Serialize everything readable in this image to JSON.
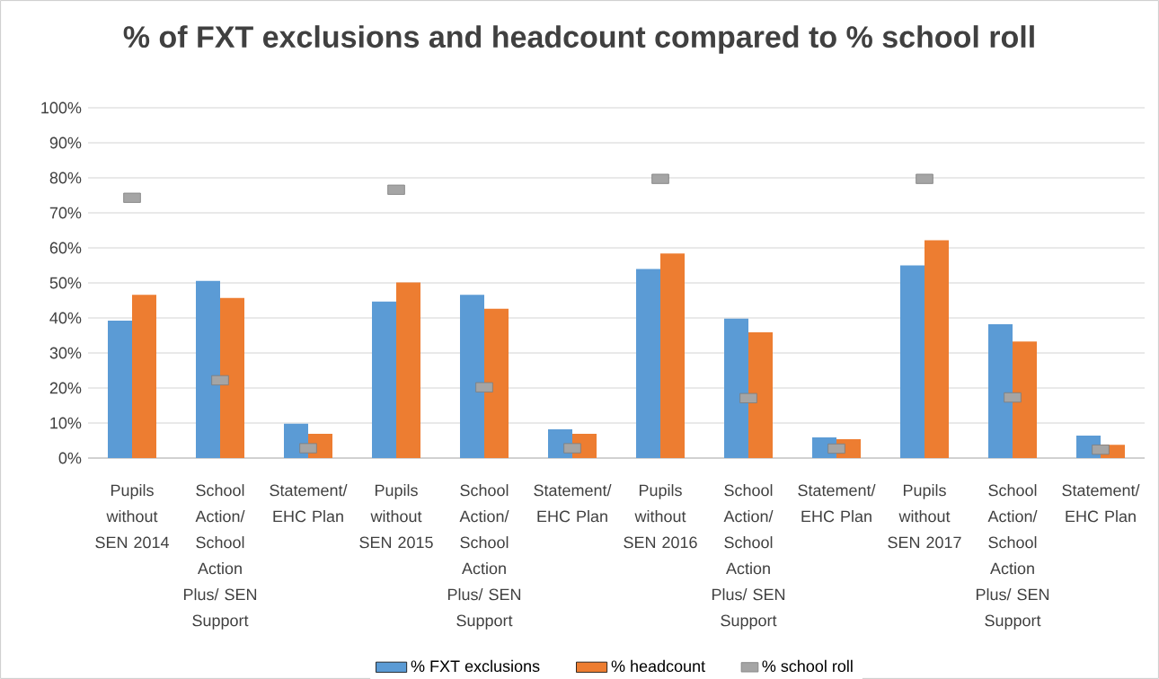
{
  "chart_data": {
    "type": "bar",
    "title": "% of FXT exclusions and headcount compared to % school roll",
    "categories": [
      "Pupils without SEN 2014",
      "School Action/ School Action Plus/ SEN Support",
      "Statement/ EHC Plan",
      "Pupils without SEN 2015",
      "School Action/ School Action Plus/ SEN Support",
      "Statement/ EHC Plan",
      "Pupils without SEN 2016",
      "School Action/ School Action Plus/ SEN Support",
      "Statement/ EHC Plan",
      "Pupils without SEN 2017",
      "School Action/ School Action Plus/ SEN Support",
      "Statement/ EHC Plan"
    ],
    "series": [
      {
        "name": "% FXT exclusions",
        "color": "#5b9bd5",
        "values": [
          39.2,
          50.6,
          9.8,
          44.7,
          46.6,
          8.2,
          54.0,
          39.8,
          5.9,
          55.0,
          38.2,
          6.4
        ]
      },
      {
        "name": "% headcount",
        "color": "#ed7d31",
        "values": [
          46.6,
          45.7,
          6.9,
          50.1,
          42.6,
          6.9,
          58.4,
          35.9,
          5.4,
          62.2,
          33.3,
          3.8
        ]
      },
      {
        "name": "% school roll",
        "type": "scatter",
        "color": "#a5a5a5",
        "values": [
          74.3,
          22.2,
          2.8,
          76.6,
          20.2,
          2.8,
          79.7,
          17.1,
          2.7,
          79.7,
          17.3,
          2.4
        ]
      }
    ],
    "ylim": [
      0,
      100
    ],
    "yticks": [
      {
        "value": 0,
        "label": "0%"
      },
      {
        "value": 10,
        "label": "10%"
      },
      {
        "value": 20,
        "label": "20%"
      },
      {
        "value": 30,
        "label": "30%"
      },
      {
        "value": 40,
        "label": "40%"
      },
      {
        "value": 50,
        "label": "50%"
      },
      {
        "value": 60,
        "label": "60%"
      },
      {
        "value": 70,
        "label": "70%"
      },
      {
        "value": 80,
        "label": "80%"
      },
      {
        "value": 90,
        "label": "90%"
      },
      {
        "value": 100,
        "label": "100%"
      }
    ],
    "grid": "y",
    "legend": "bottom"
  }
}
